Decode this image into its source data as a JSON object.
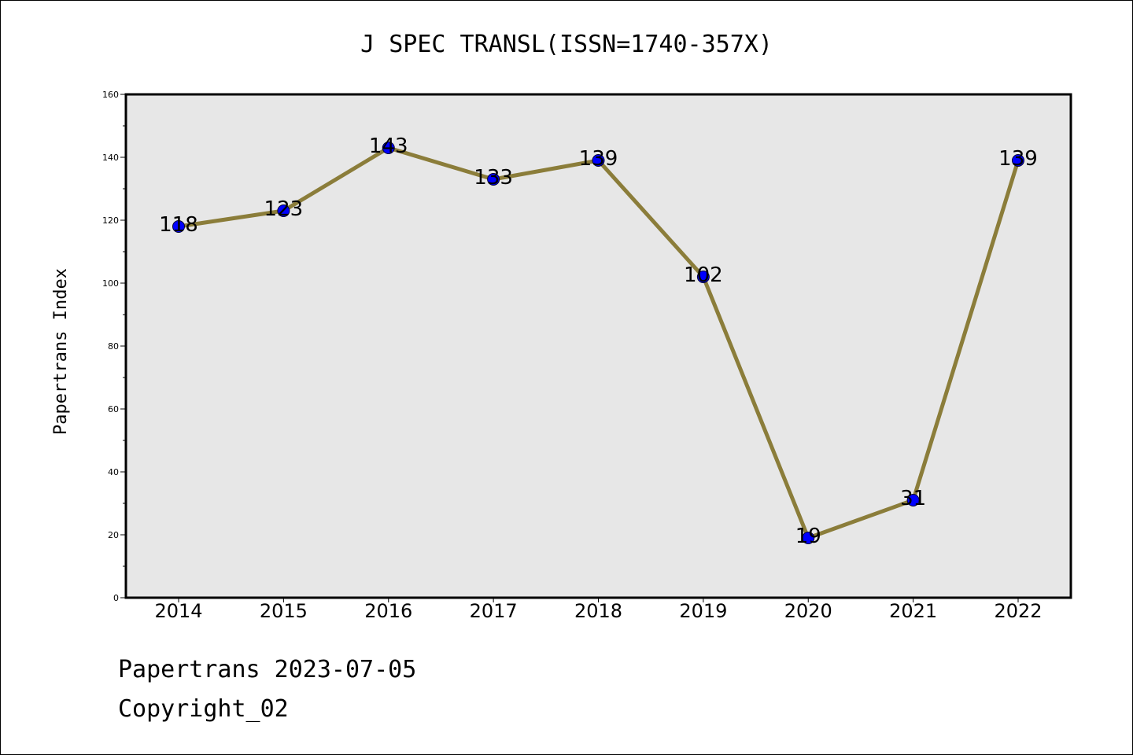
{
  "chart_data": {
    "type": "line",
    "title": "J SPEC TRANSL(ISSN=1740-357X)",
    "xlabel": "",
    "ylabel": "Papertrans Index",
    "categories": [
      "2014",
      "2015",
      "2016",
      "2017",
      "2018",
      "2019",
      "2020",
      "2021",
      "2022"
    ],
    "values": [
      118,
      123,
      143,
      133,
      139,
      102,
      19,
      31,
      139
    ],
    "data_labels": [
      "118",
      "123",
      "143",
      "133",
      "139",
      "102",
      "19",
      "31",
      "139"
    ],
    "ylim": [
      0,
      160
    ],
    "y_ticks": [
      0,
      20,
      40,
      60,
      80,
      100,
      120,
      140,
      160
    ],
    "y_tick_labels": [
      "0",
      "20",
      "40",
      "60",
      "80",
      "100",
      "120",
      "140",
      "160"
    ],
    "grid": false,
    "legend": "none",
    "colors": {
      "line": "#8b7d3a",
      "marker": "#0000ff",
      "plot_background": "#e7e7e7"
    }
  },
  "footer": {
    "date_line": "Papertrans 2023-07-05",
    "copyright_line": "Copyright_02"
  }
}
